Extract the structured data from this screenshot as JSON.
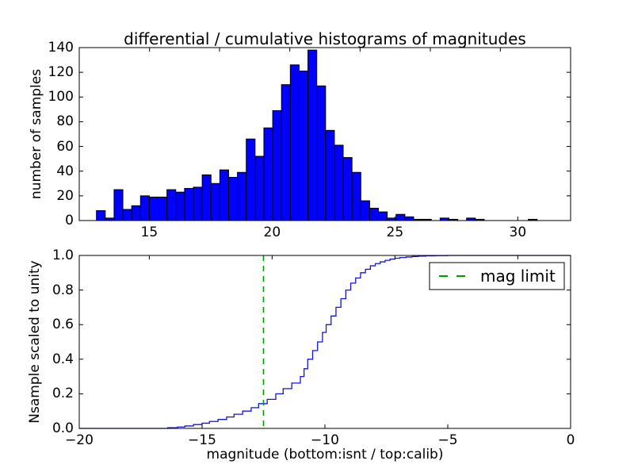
{
  "figure": {
    "background": "#ffffff"
  },
  "colors": {
    "bar_fill": "#0000ff",
    "bar_edge": "#000000",
    "curve_blue": "#1515dd",
    "limit_green": "#009900",
    "axis_black": "#000000"
  },
  "chart_data": [
    {
      "type": "bar",
      "role": "differential-histogram",
      "title": "differential / cumulative histograms of magnitudes",
      "ylabel": "number of samples",
      "xlim": [
        12.15,
        32.15
      ],
      "ylim": [
        0,
        140
      ],
      "xticks": [
        15,
        20,
        25,
        30
      ],
      "xtick_labels": [
        "15",
        "20",
        "25",
        "30"
      ],
      "yticks": [
        0,
        20,
        40,
        60,
        80,
        100,
        120,
        140
      ],
      "ytick_labels": [
        "0",
        "20",
        "40",
        "60",
        "80",
        "100",
        "120",
        "140"
      ],
      "top_spine_tick_values": [
        15.01,
        17.86,
        20.72,
        23.58,
        26.44,
        29.29
      ],
      "bin_start": 12.85,
      "bin_width": 0.3587,
      "values": [
        8,
        2,
        25,
        9,
        12,
        20,
        19,
        19,
        25,
        23,
        26,
        27,
        37,
        30,
        41,
        35,
        39,
        66,
        52,
        75,
        89,
        110,
        126,
        121,
        138,
        109,
        73,
        61,
        51,
        39,
        16,
        10,
        7,
        2,
        5,
        3,
        1,
        1,
        0,
        2,
        1,
        0,
        2,
        1,
        0,
        0,
        0,
        0,
        0,
        1
      ],
      "grid": false
    },
    {
      "type": "line",
      "role": "cumulative-histogram",
      "ylabel": "Nsample scaled to unity",
      "xlabel": "magnitude (bottom:isnt / top:calib)",
      "xlim": [
        -20,
        0
      ],
      "ylim": [
        0.0,
        1.0
      ],
      "xticks": [
        -20,
        -15,
        -10,
        -5,
        0
      ],
      "xtick_labels": [
        "−20",
        "−15",
        "−10",
        "−5",
        "0"
      ],
      "yticks": [
        0.0,
        0.2,
        0.4,
        0.6,
        0.8,
        1.0
      ],
      "ytick_labels": [
        "0.0",
        "0.2",
        "0.4",
        "0.6",
        "0.8",
        "1.0"
      ],
      "top_spine_tick_values_calib": [
        15,
        20,
        25,
        30
      ],
      "steps": {
        "x": [
          -20,
          -16.4,
          -16.0,
          -15.7,
          -15.35,
          -15.0,
          -14.7,
          -14.35,
          -14.0,
          -13.7,
          -13.35,
          -13.0,
          -12.7,
          -12.35,
          -12.0,
          -11.7,
          -11.35,
          -11.0,
          -10.85,
          -10.7,
          -10.5,
          -10.3,
          -10.1,
          -9.95,
          -9.75,
          -9.55,
          -9.35,
          -9.15,
          -8.95,
          -8.75,
          -8.55,
          -8.35,
          -8.15,
          -7.95,
          -7.75,
          -7.55,
          -7.35,
          -7.15,
          -6.95,
          -6.7,
          -6.45,
          -6.2,
          -5.9,
          -5.5,
          -5.0
        ],
        "y": [
          0,
          0.004,
          0.008,
          0.014,
          0.022,
          0.03,
          0.04,
          0.052,
          0.066,
          0.082,
          0.1,
          0.12,
          0.143,
          0.168,
          0.2,
          0.23,
          0.262,
          0.3,
          0.345,
          0.4,
          0.45,
          0.5,
          0.555,
          0.6,
          0.65,
          0.7,
          0.75,
          0.8,
          0.84,
          0.87,
          0.9,
          0.92,
          0.94,
          0.953,
          0.963,
          0.972,
          0.979,
          0.984,
          0.988,
          0.991,
          0.994,
          0.996,
          0.998,
          0.999,
          1.0
        ]
      },
      "vline": {
        "x": -12.5,
        "style": "dashed",
        "label": "mag limit"
      },
      "legend": {
        "label": "mag limit",
        "position": "upper right"
      },
      "grid": false
    }
  ]
}
